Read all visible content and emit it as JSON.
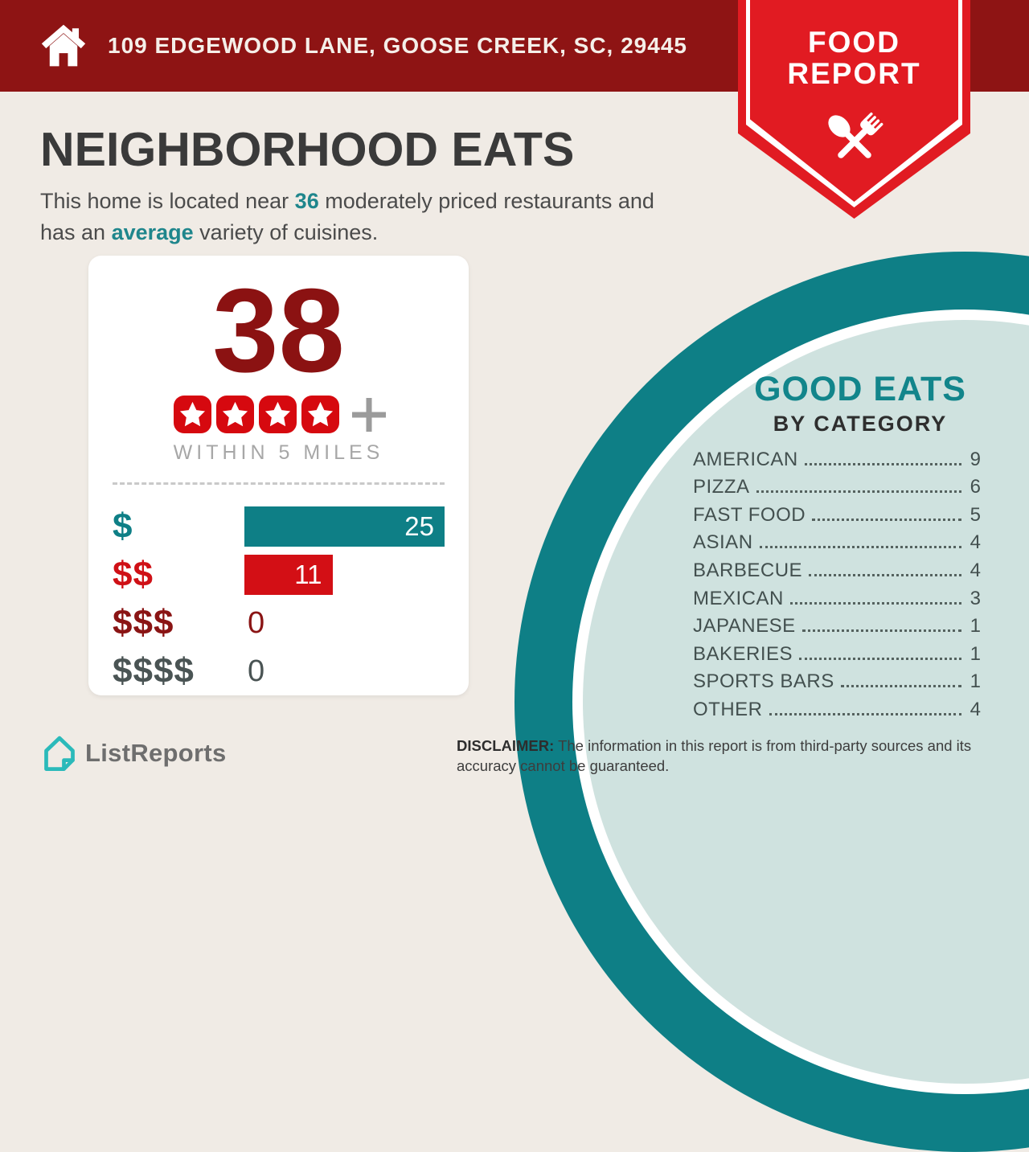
{
  "banner": {
    "address": "109 EDGEWOOD LANE, GOOSE CREEK, SC, 29445"
  },
  "ribbon": {
    "line1": "FOOD",
    "line2": "REPORT"
  },
  "header": {
    "title": "NEIGHBORHOOD EATS",
    "intro": {
      "pre": "This home is located near ",
      "count": "36",
      "mid1": " moderately priced restaurants and",
      "line2_pre": "has an ",
      "highlight": "average",
      "post": " variety of cuisines."
    }
  },
  "score_card": {
    "count": "38",
    "rating_stars": 4,
    "plus": "+",
    "radius_label": "WITHIN 5 MILES",
    "max_value": 25,
    "price_rows": [
      {
        "label": "$",
        "value": 25,
        "display": "25",
        "type": "bar",
        "bar_color": "#0e7f86",
        "label_color": "#0e7f86"
      },
      {
        "label": "$$",
        "value": 11,
        "display": "11",
        "type": "bar",
        "bar_color": "#d30f15",
        "label_color": "#cf1016"
      },
      {
        "label": "$$$",
        "value": 0,
        "display": "0",
        "type": "text",
        "bar_color": null,
        "label_color": "#8a1414"
      },
      {
        "label": "$$$$",
        "value": 0,
        "display": "0",
        "type": "text",
        "bar_color": null,
        "label_color": "#4a5454"
      }
    ]
  },
  "good_eats": {
    "title": "GOOD EATS",
    "subtitle": "BY CATEGORY",
    "categories": [
      {
        "name": "AMERICAN",
        "count": 9
      },
      {
        "name": "PIZZA",
        "count": 6
      },
      {
        "name": "FAST FOOD",
        "count": 5
      },
      {
        "name": "ASIAN",
        "count": 4
      },
      {
        "name": "BARBECUE",
        "count": 4
      },
      {
        "name": "MEXICAN",
        "count": 3
      },
      {
        "name": "JAPANESE",
        "count": 1
      },
      {
        "name": "BAKERIES",
        "count": 1
      },
      {
        "name": "SPORTS BARS",
        "count": 1
      },
      {
        "name": "OTHER",
        "count": 4
      }
    ]
  },
  "footer": {
    "brand": "ListReports",
    "disclaimer_label": "DISCLAIMER:",
    "disclaimer_text": " The information in this report is from third-party sources and its accuracy cannot be guaranteed."
  },
  "colors": {
    "banner_red": "#8e1414",
    "ribbon_red": "#e11b22",
    "dark_red": "#8b1212",
    "bright_red": "#d30f15",
    "teal": "#0e7f86",
    "teal_text": "#12858b",
    "light_teal": "#cfe2df",
    "background": "#f0ebe5",
    "logo_teal": "#2bbaba"
  },
  "chart_data": [
    {
      "type": "bar",
      "title": "Moderately priced restaurants within 5 miles by price tier",
      "categories": [
        "$",
        "$$",
        "$$$",
        "$$$$"
      ],
      "values": [
        25,
        11,
        0,
        0
      ],
      "orientation": "horizontal",
      "xlabel": "",
      "ylabel": "",
      "xlim": [
        0,
        25
      ],
      "bar_colors": [
        "#0e7f86",
        "#d30f15",
        null,
        null
      ],
      "annotations": {
        "total_count": 38,
        "rating": "4 stars and up",
        "radius": "WITHIN 5 MILES"
      }
    },
    {
      "type": "table",
      "title": "GOOD EATS BY CATEGORY",
      "categories": [
        "AMERICAN",
        "PIZZA",
        "FAST FOOD",
        "ASIAN",
        "BARBECUE",
        "MEXICAN",
        "JAPANESE",
        "BAKERIES",
        "SPORTS BARS",
        "OTHER"
      ],
      "values": [
        9,
        6,
        5,
        4,
        4,
        3,
        1,
        1,
        1,
        4
      ]
    }
  ]
}
